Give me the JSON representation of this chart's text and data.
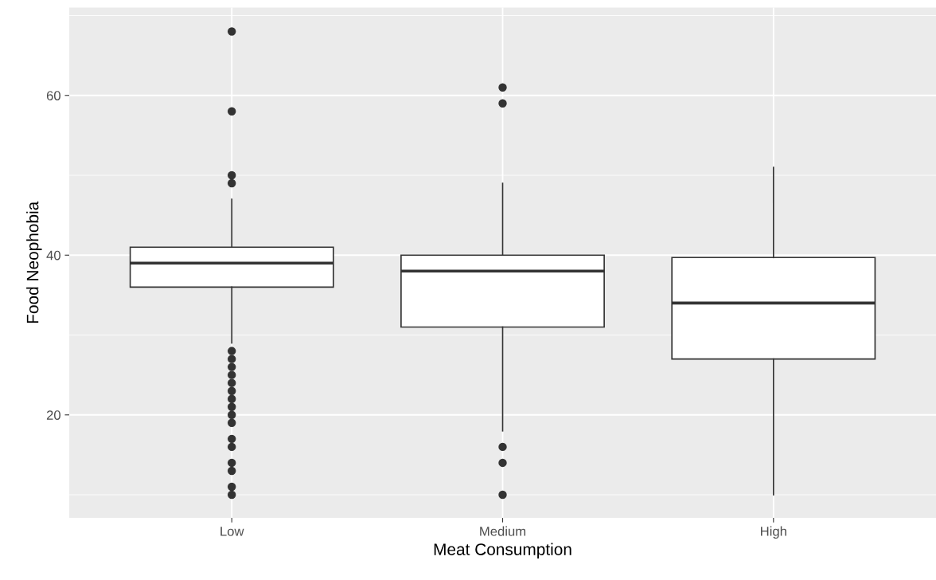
{
  "chart_data": {
    "type": "box",
    "xlabel": "Meat Consumption",
    "ylabel": "Food Neophobia",
    "categories": [
      "Low",
      "Medium",
      "High"
    ],
    "boxes": [
      {
        "low": 29,
        "q1": 36,
        "median": 39,
        "q3": 41,
        "high": 47,
        "outliers": [
          68,
          58,
          50,
          49,
          28,
          27,
          26,
          25,
          24,
          23,
          22,
          21,
          20,
          19,
          17,
          16,
          14,
          13,
          11,
          10
        ]
      },
      {
        "low": 18,
        "q1": 31,
        "median": 38,
        "q3": 40,
        "high": 49,
        "outliers": [
          61,
          59,
          16,
          14,
          10
        ]
      },
      {
        "low": 10,
        "q1": 27,
        "median": 34,
        "q3": 39.7,
        "high": 51
      }
    ],
    "color": "#ffffff",
    "ylim": [
      7.1,
      71
    ],
    "yticks": [
      20,
      40,
      60
    ],
    "grid": true
  }
}
